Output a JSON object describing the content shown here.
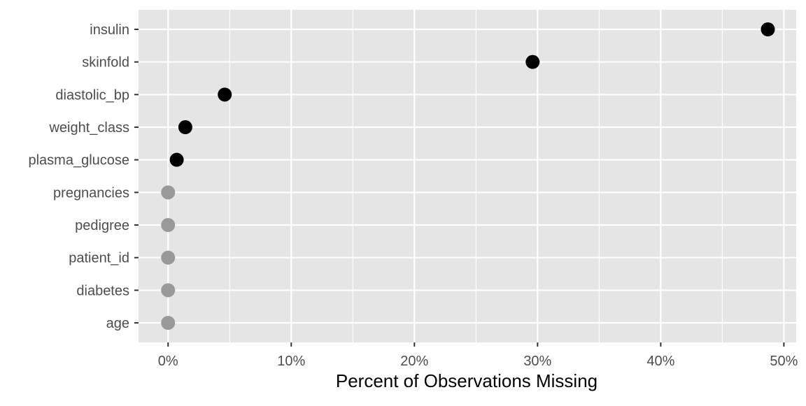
{
  "chart_data": {
    "type": "scatter",
    "title": "",
    "xlabel": "Percent of Observations Missing",
    "ylabel": "",
    "xlim": [
      -0.024,
      0.51
    ],
    "x_ticks": [
      0,
      0.1,
      0.2,
      0.3,
      0.4,
      0.5
    ],
    "x_tick_labels": [
      "0%",
      "10%",
      "20%",
      "30%",
      "40%",
      "50%"
    ],
    "x_minor_ticks": [
      0.05,
      0.15,
      0.25,
      0.35,
      0.45
    ],
    "grid": true,
    "legend": "none",
    "categories": [
      "insulin",
      "skinfold",
      "diastolic_bp",
      "weight_class",
      "plasma_glucose",
      "pregnancies",
      "pedigree",
      "patient_id",
      "diabetes",
      "age"
    ],
    "values": [
      0.487,
      0.296,
      0.046,
      0.014,
      0.007,
      0,
      0,
      0,
      0,
      0
    ],
    "point_colors": [
      "#000000",
      "#000000",
      "#000000",
      "#000000",
      "#000000",
      "#999999",
      "#999999",
      "#999999",
      "#999999",
      "#999999"
    ]
  },
  "colors": {
    "panel_background": "#e5e5e5",
    "grid_line": "#ffffff",
    "missing_point": "#000000",
    "complete_point": "#999999"
  }
}
